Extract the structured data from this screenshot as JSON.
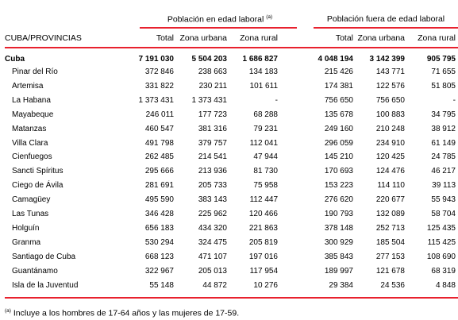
{
  "headers": {
    "region": "CUBA/PROVINCIAS",
    "group1": "Población en edad laboral",
    "group2": "Población fuera de edad laboral",
    "note_mark": "(a)",
    "total": "Total",
    "urbana": "Zona urbana",
    "rural": "Zona rural"
  },
  "rows": [
    {
      "name": "Cuba",
      "v": [
        "7 191 030",
        "5 504 203",
        "1 686 827",
        "4 048 194",
        "3 142 399",
        "905 795"
      ]
    },
    {
      "name": "Pinar del Río",
      "v": [
        "372 846",
        "238 663",
        "134 183",
        "215 426",
        "143 771",
        "71 655"
      ]
    },
    {
      "name": "Artemisa",
      "v": [
        "331 822",
        "230 211",
        "101 611",
        "174 381",
        "122 576",
        "51 805"
      ]
    },
    {
      "name": "La Habana",
      "v": [
        "1 373 431",
        "1 373 431",
        "-",
        "756 650",
        "756 650",
        "-"
      ]
    },
    {
      "name": "Mayabeque",
      "v": [
        "246 011",
        "177 723",
        "68 288",
        "135 678",
        "100 883",
        "34 795"
      ]
    },
    {
      "name": "Matanzas",
      "v": [
        "460 547",
        "381 316",
        "79 231",
        "249 160",
        "210 248",
        "38 912"
      ]
    },
    {
      "name": "Villa Clara",
      "v": [
        "491 798",
        "379 757",
        "112 041",
        "296 059",
        "234 910",
        "61 149"
      ]
    },
    {
      "name": "Cienfuegos",
      "v": [
        "262 485",
        "214 541",
        "47 944",
        "145 210",
        "120 425",
        "24 785"
      ]
    },
    {
      "name": "Sancti Spíritus",
      "v": [
        "295 666",
        "213 936",
        "81 730",
        "170 693",
        "124 476",
        "46 217"
      ]
    },
    {
      "name": "Ciego de Ávila",
      "v": [
        "281 691",
        "205 733",
        "75 958",
        "153 223",
        "114 110",
        "39 113"
      ]
    },
    {
      "name": "Camagüey",
      "v": [
        "495 590",
        "383 143",
        "112 447",
        "276 620",
        "220 677",
        "55 943"
      ]
    },
    {
      "name": "Las Tunas",
      "v": [
        "346 428",
        "225 962",
        "120 466",
        "190 793",
        "132 089",
        "58 704"
      ]
    },
    {
      "name": "Holguín",
      "v": [
        "656 183",
        "434 320",
        "221 863",
        "378 148",
        "252 713",
        "125 435"
      ]
    },
    {
      "name": "Granma",
      "v": [
        "530 294",
        "324 475",
        "205 819",
        "300 929",
        "185 504",
        "115 425"
      ]
    },
    {
      "name": "Santiago de Cuba",
      "v": [
        "668 123",
        "471 107",
        "197 016",
        "385 843",
        "277 153",
        "108 690"
      ]
    },
    {
      "name": "Guantánamo",
      "v": [
        "322 967",
        "205 013",
        "117 954",
        "189 997",
        "121 678",
        "68 319"
      ]
    },
    {
      "name": "Isla de la Juventud",
      "v": [
        "55 148",
        "44 872",
        "10 276",
        "29 384",
        "24 536",
        "4 848"
      ]
    }
  ],
  "footnote": {
    "mark": "(a)",
    "text": " Incluye a los hombres de 17-64 años y las mujeres de 17-59."
  }
}
